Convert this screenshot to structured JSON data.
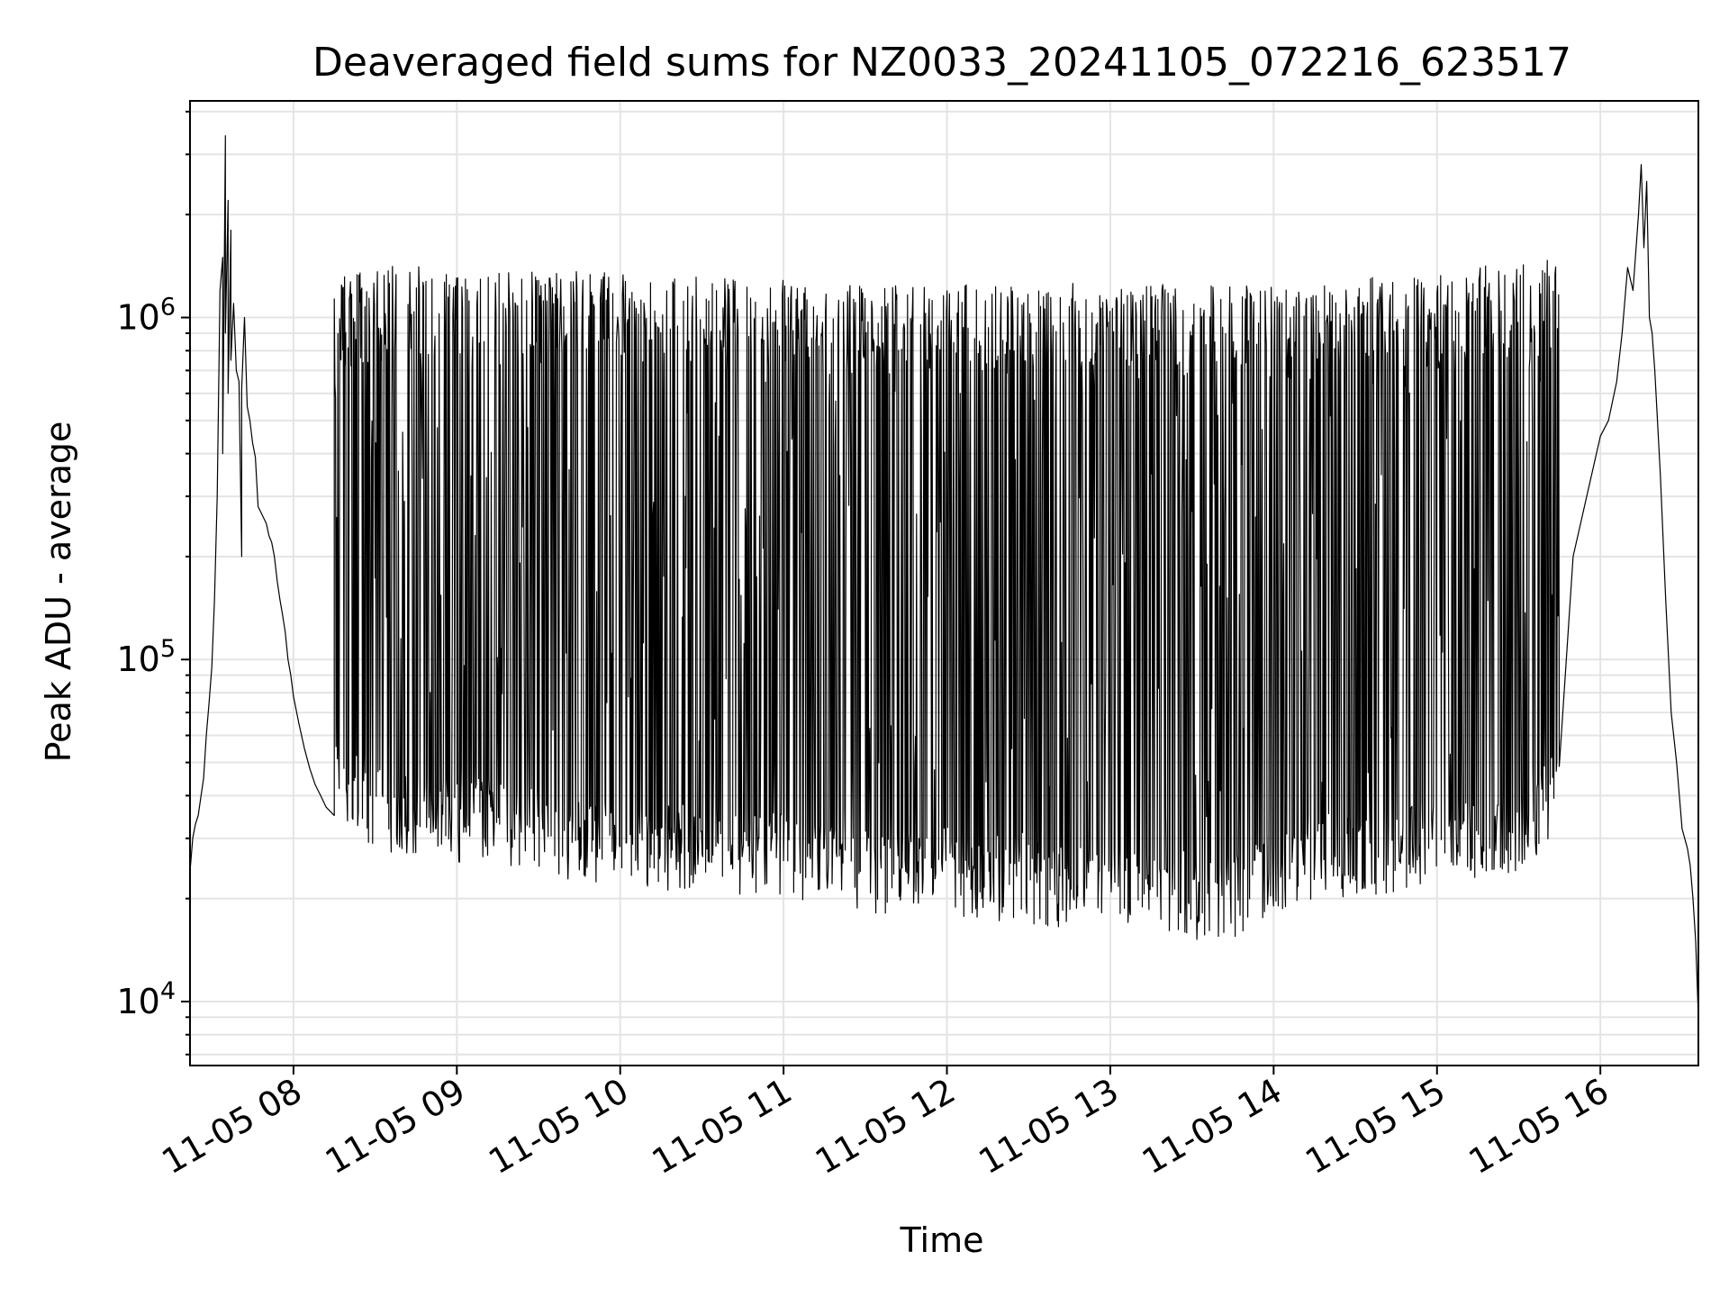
{
  "chart_data": {
    "type": "line",
    "title": "Deaveraged field sums for NZ0033_20241105_072216_623517",
    "xlabel": "Time",
    "ylabel": "Peak ADU - average",
    "yscale": "log",
    "grid": true,
    "xlim": [
      "11-05 07:22",
      "11-05 16:36"
    ],
    "ylim": [
      6500,
      4300000
    ],
    "x_ticks": [
      "11-05 08",
      "11-05 09",
      "11-05 10",
      "11-05 11",
      "11-05 12",
      "11-05 13",
      "11-05 14",
      "11-05 15",
      "11-05 16"
    ],
    "y_ticks": [
      {
        "base": "10",
        "exp": "4",
        "value": 10000
      },
      {
        "base": "10",
        "exp": "5",
        "value": 100000
      },
      {
        "base": "10",
        "exp": "6",
        "value": 1000000
      }
    ],
    "line_color": "#000000",
    "series": [
      {
        "points": [
          {
            "t": "07:22",
            "v": 24000
          },
          {
            "t": "07:23",
            "v": 30000
          },
          {
            "t": "07:24",
            "v": 33000
          },
          {
            "t": "07:25",
            "v": 35000
          },
          {
            "t": "07:27",
            "v": 45000
          },
          {
            "t": "07:28",
            "v": 60000
          },
          {
            "t": "07:29",
            "v": 75000
          },
          {
            "t": "07:30",
            "v": 95000
          },
          {
            "t": "07:31",
            "v": 150000
          },
          {
            "t": "07:32",
            "v": 300000
          },
          {
            "t": "07:33",
            "v": 1200000
          },
          {
            "t": "07:34",
            "v": 1500000
          },
          {
            "t": "07:34",
            "v": 400000
          },
          {
            "t": "07:35",
            "v": 3400000
          },
          {
            "t": "07:35",
            "v": 900000
          },
          {
            "t": "07:36",
            "v": 2200000
          },
          {
            "t": "07:36",
            "v": 600000
          },
          {
            "t": "07:37",
            "v": 1800000
          },
          {
            "t": "07:37",
            "v": 750000
          },
          {
            "t": "07:38",
            "v": 1100000
          },
          {
            "t": "07:39",
            "v": 700000
          },
          {
            "t": "07:40",
            "v": 650000
          },
          {
            "t": "07:41",
            "v": 200000
          },
          {
            "t": "07:41",
            "v": 620000
          },
          {
            "t": "07:42",
            "v": 1000000
          },
          {
            "t": "07:43",
            "v": 550000
          },
          {
            "t": "07:44",
            "v": 500000
          },
          {
            "t": "07:45",
            "v": 430000
          },
          {
            "t": "07:46",
            "v": 390000
          },
          {
            "t": "07:47",
            "v": 280000
          },
          {
            "t": "07:48",
            "v": 270000
          },
          {
            "t": "07:49",
            "v": 260000
          },
          {
            "t": "07:50",
            "v": 250000
          },
          {
            "t": "07:51",
            "v": 230000
          },
          {
            "t": "07:52",
            "v": 220000
          },
          {
            "t": "07:53",
            "v": 200000
          },
          {
            "t": "07:54",
            "v": 170000
          },
          {
            "t": "07:55",
            "v": 150000
          },
          {
            "t": "07:56",
            "v": 135000
          },
          {
            "t": "07:57",
            "v": 120000
          },
          {
            "t": "07:58",
            "v": 100000
          },
          {
            "t": "07:59",
            "v": 90000
          },
          {
            "t": "08:00",
            "v": 78000
          },
          {
            "t": "08:02",
            "v": 65000
          },
          {
            "t": "08:04",
            "v": 55000
          },
          {
            "t": "08:06",
            "v": 48000
          },
          {
            "t": "08:08",
            "v": 43000
          },
          {
            "t": "08:10",
            "v": 40000
          },
          {
            "t": "08:12",
            "v": 37000
          },
          {
            "t": "08:15",
            "v": 35000
          }
        ]
      }
    ],
    "extent": [
      {
        "t": "08:15",
        "lo": 32000,
        "hi": 1250000
      },
      {
        "t": "08:30",
        "lo": 28000,
        "hi": 1350000
      },
      {
        "t": "08:45",
        "lo": 26000,
        "hi": 1350000
      },
      {
        "t": "09:00",
        "lo": 25000,
        "hi": 1300000
      },
      {
        "t": "09:15",
        "lo": 25000,
        "hi": 1300000
      },
      {
        "t": "09:30",
        "lo": 23000,
        "hi": 1300000
      },
      {
        "t": "09:45",
        "lo": 22000,
        "hi": 1300000
      },
      {
        "t": "10:00",
        "lo": 22000,
        "hi": 1300000
      },
      {
        "t": "10:15",
        "lo": 21000,
        "hi": 1250000
      },
      {
        "t": "10:30",
        "lo": 21000,
        "hi": 1250000
      },
      {
        "t": "10:45",
        "lo": 20000,
        "hi": 1250000
      },
      {
        "t": "11:00",
        "lo": 20000,
        "hi": 1250000
      },
      {
        "t": "11:15",
        "lo": 19000,
        "hi": 1200000
      },
      {
        "t": "11:30",
        "lo": 18000,
        "hi": 1200000
      },
      {
        "t": "11:45",
        "lo": 18000,
        "hi": 1200000
      },
      {
        "t": "12:00",
        "lo": 18000,
        "hi": 1200000
      },
      {
        "t": "12:15",
        "lo": 17000,
        "hi": 1200000
      },
      {
        "t": "12:30",
        "lo": 17000,
        "hi": 1200000
      },
      {
        "t": "12:45",
        "lo": 16000,
        "hi": 1200000
      },
      {
        "t": "13:00",
        "lo": 16000,
        "hi": 1200000
      },
      {
        "t": "13:15",
        "lo": 15000,
        "hi": 1200000
      },
      {
        "t": "13:30",
        "lo": 14000,
        "hi": 1200000
      },
      {
        "t": "13:45",
        "lo": 15000,
        "hi": 1200000
      },
      {
        "t": "14:00",
        "lo": 18000,
        "hi": 1200000
      },
      {
        "t": "14:15",
        "lo": 20000,
        "hi": 1200000
      },
      {
        "t": "14:30",
        "lo": 20000,
        "hi": 1250000
      },
      {
        "t": "14:45",
        "lo": 21000,
        "hi": 1250000
      },
      {
        "t": "15:00",
        "lo": 22000,
        "hi": 1300000
      },
      {
        "t": "15:15",
        "lo": 22000,
        "hi": 1350000
      },
      {
        "t": "15:30",
        "lo": 24000,
        "hi": 1400000
      },
      {
        "t": "15:45",
        "lo": 30000,
        "hi": 1400000
      }
    ],
    "tail": [
      {
        "t": "15:50",
        "v": 200000
      },
      {
        "t": "15:55",
        "v": 300000
      },
      {
        "t": "16:00",
        "v": 450000
      },
      {
        "t": "16:03",
        "v": 500000
      },
      {
        "t": "16:06",
        "v": 650000
      },
      {
        "t": "16:08",
        "v": 900000
      },
      {
        "t": "16:10",
        "v": 1400000
      },
      {
        "t": "16:12",
        "v": 1200000
      },
      {
        "t": "16:14",
        "v": 2000000
      },
      {
        "t": "16:15",
        "v": 2800000
      },
      {
        "t": "16:16",
        "v": 1600000
      },
      {
        "t": "16:17",
        "v": 2500000
      },
      {
        "t": "16:18",
        "v": 1000000
      },
      {
        "t": "16:19",
        "v": 900000
      },
      {
        "t": "16:20",
        "v": 700000
      },
      {
        "t": "16:22",
        "v": 350000
      },
      {
        "t": "16:24",
        "v": 150000
      },
      {
        "t": "16:26",
        "v": 70000
      },
      {
        "t": "16:28",
        "v": 50000
      },
      {
        "t": "16:30",
        "v": 32000
      },
      {
        "t": "16:32",
        "v": 28000
      },
      {
        "t": "16:33",
        "v": 25000
      },
      {
        "t": "16:34",
        "v": 20000
      },
      {
        "t": "16:35",
        "v": 15000
      },
      {
        "t": "16:36",
        "v": 9000
      }
    ]
  }
}
